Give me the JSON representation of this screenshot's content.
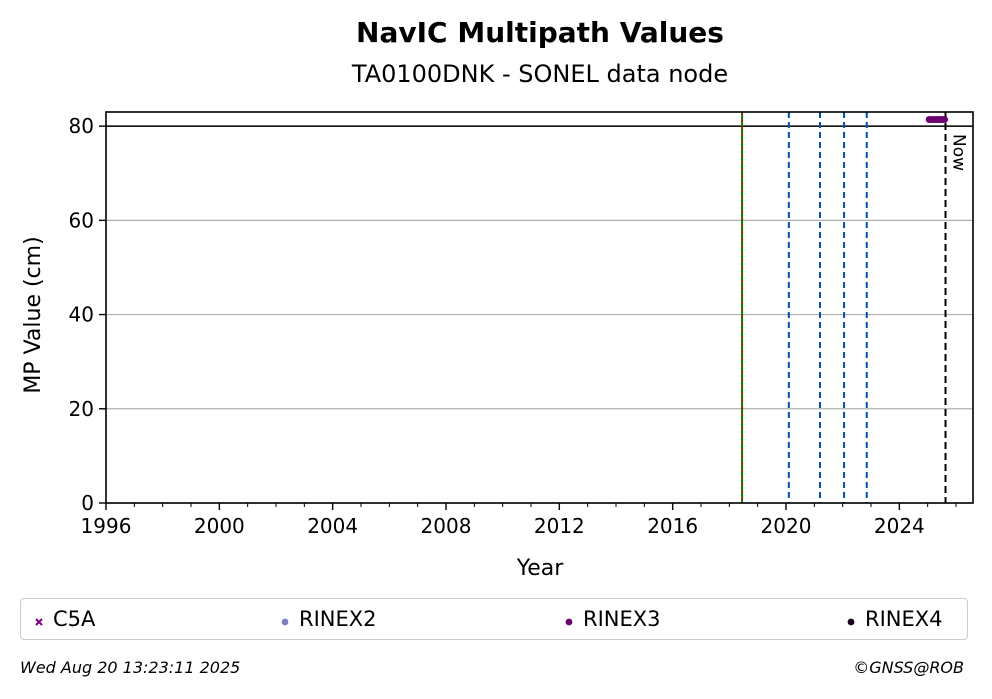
{
  "chart_data": {
    "type": "scatter",
    "title": "NavIC Multipath Values",
    "subtitle": "TA0100DNK - SONEL data node",
    "xlabel": "Year",
    "ylabel": "MP Value (cm)",
    "xlim": [
      1996,
      2026.6
    ],
    "ylim": [
      0,
      83
    ],
    "xticks": [
      "1996",
      "2000",
      "2004",
      "2008",
      "2012",
      "2016",
      "2020",
      "2024"
    ],
    "yticks": [
      "0",
      "20",
      "40",
      "60",
      "80"
    ],
    "grid": "horizontal",
    "reference_line_y": 80,
    "now_label": "Now",
    "now_x": 2025.63,
    "event_lines": [
      {
        "x": 2018.45,
        "style": "green-red-dashed"
      },
      {
        "x": 2020.1,
        "style": "blue-dashed"
      },
      {
        "x": 2021.2,
        "style": "blue-dashed"
      },
      {
        "x": 2022.05,
        "style": "blue-dashed"
      },
      {
        "x": 2022.85,
        "style": "blue-dashed"
      }
    ],
    "series": [
      {
        "name": "C5A",
        "marker": "x",
        "color": "#800080",
        "x": [],
        "y": []
      },
      {
        "name": "RINEX2",
        "marker": "dot",
        "color": "#8080c0",
        "x": [],
        "y": []
      },
      {
        "name": "RINEX3",
        "marker": "dot",
        "color": "#6b0070",
        "x": [
          2025.05,
          2025.1,
          2025.15,
          2025.2,
          2025.25,
          2025.3,
          2025.35,
          2025.4,
          2025.45,
          2025.5,
          2025.55,
          2025.6
        ],
        "y": [
          81.4,
          81.4,
          81.4,
          81.4,
          81.4,
          81.4,
          81.4,
          81.4,
          81.4,
          81.4,
          81.4,
          81.4
        ]
      },
      {
        "name": "RINEX4",
        "marker": "dot",
        "color": "#1a001a",
        "x": [],
        "y": []
      }
    ],
    "legend": "bottom"
  },
  "footer": {
    "timestamp": "Wed Aug 20 13:23:11 2025",
    "credit": "©GNSS@ROB"
  }
}
